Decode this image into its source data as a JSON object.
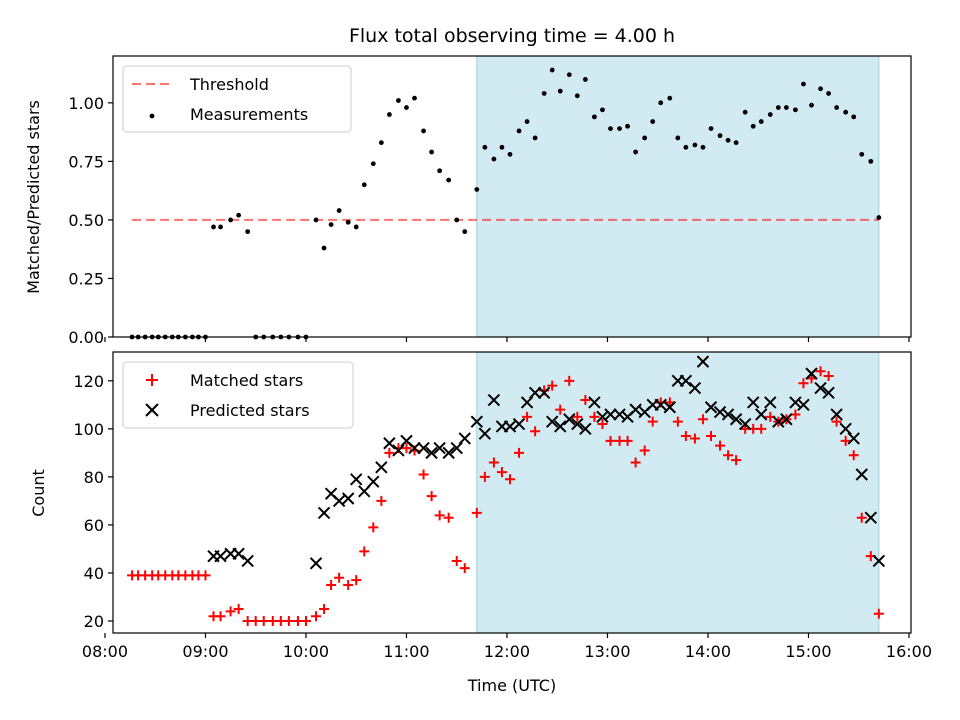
{
  "colors": {
    "highlight": "#add8e6",
    "threshold": "#ff0000",
    "measurement": "#000000",
    "matched": "#ff0000",
    "predicted": "#000000"
  },
  "chart_data": [
    {
      "type": "scatter",
      "title": "Flux total observing time = 4.00 h",
      "xlabel": "",
      "ylabel": "Matched/Predicted stars",
      "xlim": [
        8.08,
        16.02
      ],
      "ylim": [
        0.0,
        1.2
      ],
      "x_ticks": [
        8,
        9,
        10,
        11,
        12,
        13,
        14,
        15,
        16
      ],
      "yticks": [
        {
          "value": 0.0,
          "label": "0.00"
        },
        {
          "value": 0.25,
          "label": "0.25"
        },
        {
          "value": 0.5,
          "label": "0.50"
        },
        {
          "value": 0.75,
          "label": "0.75"
        },
        {
          "value": 1.0,
          "label": "1.00"
        }
      ],
      "highlight_span": {
        "x_start": 11.7,
        "x_end": 15.7
      },
      "legend_position": "upper left",
      "threshold": {
        "name": "Threshold",
        "value": 0.5,
        "x_start": 8.27,
        "x_end": 15.7,
        "style": "dashed"
      },
      "series": [
        {
          "name": "Measurements",
          "marker": "dot",
          "x": [
            8.27,
            8.33,
            8.4,
            8.47,
            8.53,
            8.6,
            8.67,
            8.73,
            8.8,
            8.87,
            8.93,
            9.0,
            9.08,
            9.15,
            9.25,
            9.33,
            9.42,
            9.5,
            9.58,
            9.67,
            9.75,
            9.83,
            9.92,
            10.0,
            10.1,
            10.18,
            10.25,
            10.33,
            10.42,
            10.5,
            10.58,
            10.67,
            10.75,
            10.83,
            10.92,
            11.0,
            11.08,
            11.17,
            11.25,
            11.33,
            11.42,
            11.5,
            11.58,
            11.7,
            11.78,
            11.87,
            11.95,
            12.03,
            12.12,
            12.2,
            12.28,
            12.37,
            12.45,
            12.53,
            12.62,
            12.7,
            12.78,
            12.87,
            12.95,
            13.03,
            13.12,
            13.2,
            13.28,
            13.37,
            13.45,
            13.53,
            13.62,
            13.7,
            13.78,
            13.87,
            13.95,
            14.03,
            14.12,
            14.2,
            14.28,
            14.37,
            14.45,
            14.53,
            14.62,
            14.7,
            14.78,
            14.87,
            14.95,
            15.03,
            15.12,
            15.2,
            15.28,
            15.37,
            15.45,
            15.53,
            15.62,
            15.7
          ],
          "y": [
            0,
            0,
            0,
            0,
            0,
            0,
            0,
            0,
            0,
            0,
            0,
            0,
            0.47,
            0.47,
            0.5,
            0.52,
            0.45,
            0,
            0,
            0,
            0,
            0,
            0,
            0,
            0.5,
            0.38,
            0.48,
            0.54,
            0.49,
            0.47,
            0.65,
            0.74,
            0.83,
            0.95,
            1.01,
            0.98,
            1.02,
            0.88,
            0.79,
            0.71,
            0.67,
            0.5,
            0.45,
            0.63,
            0.81,
            0.76,
            0.81,
            0.78,
            0.88,
            0.92,
            0.85,
            1.04,
            1.14,
            1.05,
            1.12,
            1.03,
            1.1,
            0.94,
            0.97,
            0.89,
            0.89,
            0.9,
            0.79,
            0.85,
            0.92,
            1.0,
            1.02,
            0.85,
            0.81,
            0.82,
            0.81,
            0.89,
            0.86,
            0.84,
            0.83,
            0.96,
            0.9,
            0.92,
            0.95,
            0.98,
            0.98,
            0.97,
            1.08,
            0.99,
            1.06,
            1.04,
            0.98,
            0.96,
            0.94,
            0.78,
            0.75,
            0.51
          ]
        }
      ]
    },
    {
      "type": "scatter",
      "title": "",
      "xlabel": "Time (UTC)",
      "ylabel": "Count",
      "xlim": [
        8.08,
        16.02
      ],
      "ylim": [
        15,
        132
      ],
      "x_ticks": [
        8,
        9,
        10,
        11,
        12,
        13,
        14,
        15,
        16
      ],
      "xtick_labels": [
        "08:00",
        "09:00",
        "10:00",
        "11:00",
        "12:00",
        "13:00",
        "14:00",
        "15:00",
        "16:00"
      ],
      "yticks": [
        {
          "value": 20,
          "label": "20"
        },
        {
          "value": 40,
          "label": "40"
        },
        {
          "value": 60,
          "label": "60"
        },
        {
          "value": 80,
          "label": "80"
        },
        {
          "value": 100,
          "label": "100"
        },
        {
          "value": 120,
          "label": "120"
        }
      ],
      "highlight_span": {
        "x_start": 11.7,
        "x_end": 15.7
      },
      "legend_position": "upper left",
      "series": [
        {
          "name": "Matched stars",
          "marker": "plus",
          "x": [
            8.27,
            8.33,
            8.4,
            8.47,
            8.53,
            8.6,
            8.67,
            8.73,
            8.8,
            8.87,
            8.93,
            9.0,
            9.08,
            9.15,
            9.25,
            9.33,
            9.42,
            9.5,
            9.58,
            9.67,
            9.75,
            9.83,
            9.92,
            10.0,
            10.1,
            10.18,
            10.25,
            10.33,
            10.42,
            10.5,
            10.58,
            10.67,
            10.75,
            10.83,
            10.92,
            11.0,
            11.08,
            11.17,
            11.25,
            11.33,
            11.42,
            11.5,
            11.58,
            11.7,
            11.78,
            11.87,
            11.95,
            12.03,
            12.12,
            12.2,
            12.28,
            12.37,
            12.45,
            12.53,
            12.62,
            12.7,
            12.78,
            12.87,
            12.95,
            13.03,
            13.12,
            13.2,
            13.28,
            13.37,
            13.45,
            13.53,
            13.62,
            13.7,
            13.78,
            13.87,
            13.95,
            14.03,
            14.12,
            14.2,
            14.28,
            14.37,
            14.45,
            14.53,
            14.62,
            14.7,
            14.78,
            14.87,
            14.95,
            15.03,
            15.12,
            15.2,
            15.28,
            15.37,
            15.45,
            15.53,
            15.62,
            15.7
          ],
          "y": [
            39,
            39,
            39,
            39,
            39,
            39,
            39,
            39,
            39,
            39,
            39,
            39,
            22,
            22,
            24,
            25,
            20,
            20,
            20,
            20,
            20,
            20,
            20,
            20,
            22,
            25,
            35,
            38,
            35,
            37,
            49,
            59,
            70,
            90,
            92,
            92,
            91,
            81,
            72,
            64,
            63,
            45,
            42,
            65,
            80,
            86,
            82,
            79,
            90,
            105,
            99,
            116,
            118,
            108,
            120,
            105,
            112,
            105,
            102,
            95,
            95,
            95,
            86,
            91,
            103,
            111,
            111,
            103,
            97,
            96,
            104,
            97,
            93,
            89,
            87,
            100,
            100,
            100,
            105,
            103,
            104,
            106,
            119,
            121,
            124,
            122,
            103,
            95,
            89,
            63,
            47,
            23
          ]
        },
        {
          "name": "Predicted stars",
          "marker": "x",
          "x": [
            9.08,
            9.15,
            9.25,
            9.33,
            9.42,
            10.1,
            10.18,
            10.25,
            10.33,
            10.42,
            10.5,
            10.58,
            10.67,
            10.75,
            10.83,
            10.92,
            11.0,
            11.08,
            11.17,
            11.25,
            11.33,
            11.42,
            11.5,
            11.58,
            11.7,
            11.78,
            11.87,
            11.95,
            12.03,
            12.12,
            12.2,
            12.28,
            12.37,
            12.45,
            12.53,
            12.62,
            12.7,
            12.78,
            12.87,
            12.95,
            13.03,
            13.12,
            13.2,
            13.28,
            13.37,
            13.45,
            13.53,
            13.62,
            13.7,
            13.78,
            13.87,
            13.95,
            14.03,
            14.12,
            14.2,
            14.28,
            14.37,
            14.45,
            14.53,
            14.62,
            14.7,
            14.78,
            14.87,
            14.95,
            15.03,
            15.12,
            15.2,
            15.28,
            15.37,
            15.45,
            15.53,
            15.62,
            15.7
          ],
          "y": [
            47,
            47,
            48,
            48,
            45,
            44,
            65,
            73,
            70,
            71,
            79,
            74,
            78,
            84,
            94,
            91,
            95,
            92,
            92,
            90,
            92,
            90,
            92,
            96,
            103,
            98,
            112,
            101,
            101,
            102,
            111,
            115,
            115,
            103,
            101,
            104,
            102,
            100,
            111,
            105,
            106,
            106,
            105,
            108,
            107,
            110,
            110,
            109,
            120,
            120,
            117,
            128,
            109,
            107,
            106,
            104,
            102,
            111,
            106,
            111,
            103,
            104,
            111,
            110,
            123,
            117,
            115,
            106,
            100,
            96,
            81,
            63,
            45
          ]
        }
      ]
    }
  ]
}
